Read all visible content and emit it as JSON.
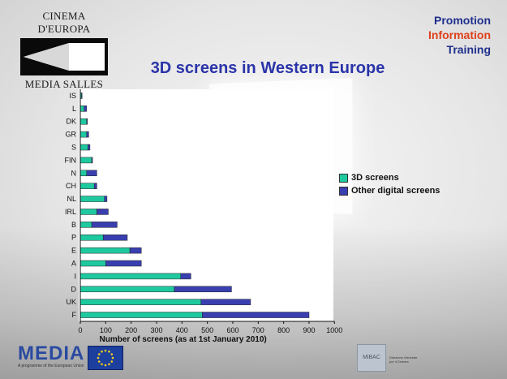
{
  "logo": {
    "top_text": "CINEMA D'EUROPA",
    "bottom_text": "MEDIA SALLES"
  },
  "tagline": {
    "line1": "Promotion",
    "line2": "Information",
    "line3": "Training"
  },
  "colors": {
    "three_d": "#1fc9a0",
    "other_digital": "#3a3fb0",
    "title": "#2a34a8",
    "accent_orange": "#e0401a"
  },
  "footer": {
    "media_logo": "MEDIA",
    "media_sub": "A programme of the European Union",
    "ministry_text": "Direzione Generale per il Cinema",
    "ministry_logo": "MiBAC"
  },
  "chart_data": {
    "type": "bar",
    "orientation": "horizontal",
    "stacked": true,
    "title": "3D screens in Western Europe",
    "xlabel": "Number of screens (as at 1st January 2010)",
    "ylabel": "",
    "xlim": [
      0,
      1000
    ],
    "xticks": [
      0,
      100,
      200,
      300,
      400,
      500,
      600,
      700,
      800,
      900,
      1000
    ],
    "grid": false,
    "legend_position": "right",
    "categories": [
      "IS",
      "L",
      "DK",
      "GR",
      "S",
      "FIN",
      "N",
      "CH",
      "NL",
      "IRL",
      "B",
      "P",
      "E",
      "A",
      "I",
      "D",
      "UK",
      "F"
    ],
    "series": [
      {
        "name": "3D screens",
        "values": [
          5,
          15,
          25,
          25,
          30,
          45,
          25,
          55,
          95,
          65,
          45,
          90,
          195,
          100,
          395,
          370,
          475,
          480
        ]
      },
      {
        "name": "Other digital screens",
        "values": [
          2,
          10,
          3,
          8,
          8,
          3,
          40,
          10,
          10,
          45,
          100,
          95,
          45,
          140,
          40,
          225,
          195,
          420
        ]
      }
    ]
  }
}
